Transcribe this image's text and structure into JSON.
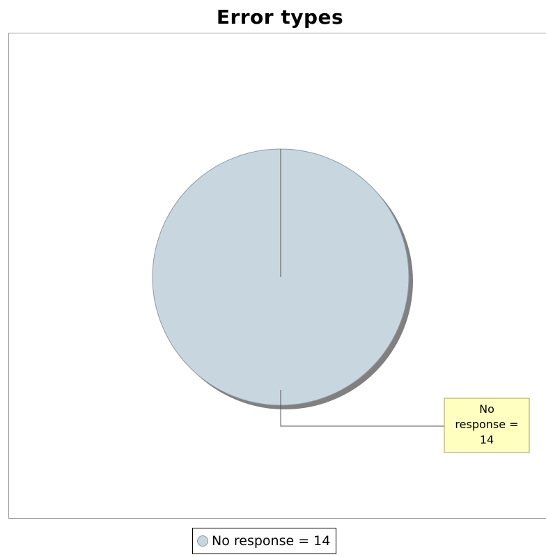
{
  "chart_data": {
    "type": "pie",
    "title": "Error types",
    "categories": [
      "No response"
    ],
    "values": [
      14
    ],
    "colors": [
      "#c8d6e0"
    ],
    "data_labels": [
      "No response =\n14"
    ],
    "legend": {
      "entries": [
        "No response = 14"
      ],
      "placement": "bottom-center"
    },
    "label_style": {
      "background": "#ffffc0",
      "border": "#a0a05a"
    }
  }
}
